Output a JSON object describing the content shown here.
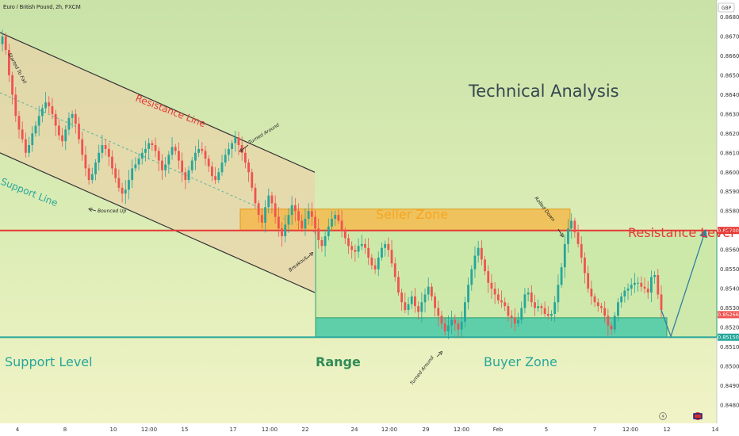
{
  "header": {
    "symbol_title": "Euro / British Pound, 2h, FXCM"
  },
  "currency_badge": "GBP",
  "colors": {
    "bg_top": "#c9e2a8",
    "bg_bottom": "#f1f3c6",
    "bull": "#26a69a",
    "bear": "#ef5350",
    "resistance": "#e53935",
    "support": "#26a69a",
    "seller_zone": "#f5b440",
    "buyer_zone": "#5fcfaa",
    "channel_fill": "#e9d3a9",
    "range_fill": "#c8e7a6"
  },
  "annotations": {
    "technical_analysis": "Technical Analysis",
    "resistance_line": "Resistance Line",
    "support_line": "Support Line",
    "seller_zone": "Seller Zone",
    "resistance_level": "Resistance Level",
    "support_level": "Support Level",
    "range": "Range",
    "buyer_zone": "Buyer Zone",
    "started_to_fall": "Started To Fall",
    "turned_around_top": "Turned Around",
    "bounced_up": "Bounced Up",
    "breakout": "Breakout",
    "turned_around_bottom": "Turned Around",
    "rolled_down": "Rolled Down"
  },
  "chart_data": {
    "type": "candlestick",
    "y_axis": {
      "ticks": [
        "0.86800",
        "0.86700",
        "0.86600",
        "0.86500",
        "0.86400",
        "0.86300",
        "0.86200",
        "0.86100",
        "0.86000",
        "0.85900",
        "0.85800",
        "0.85700",
        "0.85600",
        "0.85500",
        "0.85400",
        "0.85300",
        "0.85200",
        "0.85100",
        "0.85000",
        "0.84900",
        "0.84800"
      ],
      "range": [
        0.84755,
        0.86855
      ]
    },
    "x_axis": {
      "ticks": [
        "4",
        "8",
        "10",
        "12:00",
        "15",
        "17",
        "12:00",
        "22",
        "24",
        "12:00",
        "29",
        "12:00",
        "Feb",
        "5",
        "7",
        "12:00",
        "12",
        "14"
      ]
    },
    "price_labels": {
      "resistance": "0.85700",
      "current": "0.85266",
      "support": "0.85150"
    },
    "levels": {
      "resistance_level": 0.857,
      "support_level": 0.8515,
      "seller_zone": [
        0.857,
        0.8581
      ],
      "buyer_zone": [
        0.8515,
        0.8525
      ]
    },
    "channel": {
      "upper_start": 0.8672,
      "upper_end": 0.86,
      "lower_start": 0.861,
      "lower_end": 0.8538
    },
    "candles": [
      0.867,
      0.8663,
      0.865,
      0.864,
      0.8629,
      0.8622,
      0.8617,
      0.861,
      0.8614,
      0.862,
      0.8624,
      0.8629,
      0.8633,
      0.8636,
      0.8634,
      0.863,
      0.8624,
      0.8619,
      0.8616,
      0.8622,
      0.8628,
      0.863,
      0.8625,
      0.8617,
      0.8609,
      0.8602,
      0.8596,
      0.8599,
      0.8605,
      0.861,
      0.8614,
      0.8612,
      0.8608,
      0.8602,
      0.8597,
      0.8592,
      0.8589,
      0.8591,
      0.8596,
      0.8602,
      0.8604,
      0.8607,
      0.861,
      0.8612,
      0.8615,
      0.8614,
      0.8611,
      0.8606,
      0.8601,
      0.8604,
      0.8609,
      0.8613,
      0.8611,
      0.8606,
      0.86,
      0.8596,
      0.8601,
      0.8606,
      0.861,
      0.8612,
      0.8611,
      0.8607,
      0.8603,
      0.8598,
      0.8596,
      0.86,
      0.8605,
      0.8609,
      0.8612,
      0.8615,
      0.8618,
      0.8614,
      0.861,
      0.8605,
      0.86,
      0.8592,
      0.8584,
      0.8578,
      0.8574,
      0.8582,
      0.8588,
      0.8584,
      0.8577,
      0.8571,
      0.8567,
      0.8573,
      0.8578,
      0.8583,
      0.858,
      0.8575,
      0.8571,
      0.8576,
      0.858,
      0.8577,
      0.8571,
      0.8565,
      0.8562,
      0.8567,
      0.8572,
      0.8576,
      0.8578,
      0.8575,
      0.857,
      0.8566,
      0.8562,
      0.856,
      0.8559,
      0.8562,
      0.8563,
      0.8561,
      0.8556,
      0.8552,
      0.855,
      0.8556,
      0.8561,
      0.8563,
      0.856,
      0.8553,
      0.8546,
      0.8538,
      0.8533,
      0.8529,
      0.8532,
      0.8536,
      0.8531,
      0.8528,
      0.8533,
      0.8537,
      0.8541,
      0.8536,
      0.853,
      0.8526,
      0.8522,
      0.8518,
      0.8521,
      0.8524,
      0.8522,
      0.8519,
      0.8523,
      0.8533,
      0.8542,
      0.855,
      0.8557,
      0.8561,
      0.8555,
      0.8549,
      0.8543,
      0.854,
      0.8537,
      0.8534,
      0.8533,
      0.8531,
      0.8526,
      0.8525,
      0.8522,
      0.8524,
      0.853,
      0.8537,
      0.8538,
      0.8533,
      0.853,
      0.8531,
      0.853,
      0.8527,
      0.8526,
      0.8527,
      0.8533,
      0.8542,
      0.8551,
      0.8563,
      0.8571,
      0.8575,
      0.8569,
      0.8563,
      0.8556,
      0.8548,
      0.854,
      0.8536,
      0.8533,
      0.8531,
      0.853,
      0.8526,
      0.8521,
      0.8519,
      0.8526,
      0.8533,
      0.8536,
      0.8539,
      0.854,
      0.8542,
      0.8543,
      0.8543,
      0.8541,
      0.854,
      0.8538,
      0.8546,
      0.8547,
      0.8537,
      0.8529
    ]
  }
}
